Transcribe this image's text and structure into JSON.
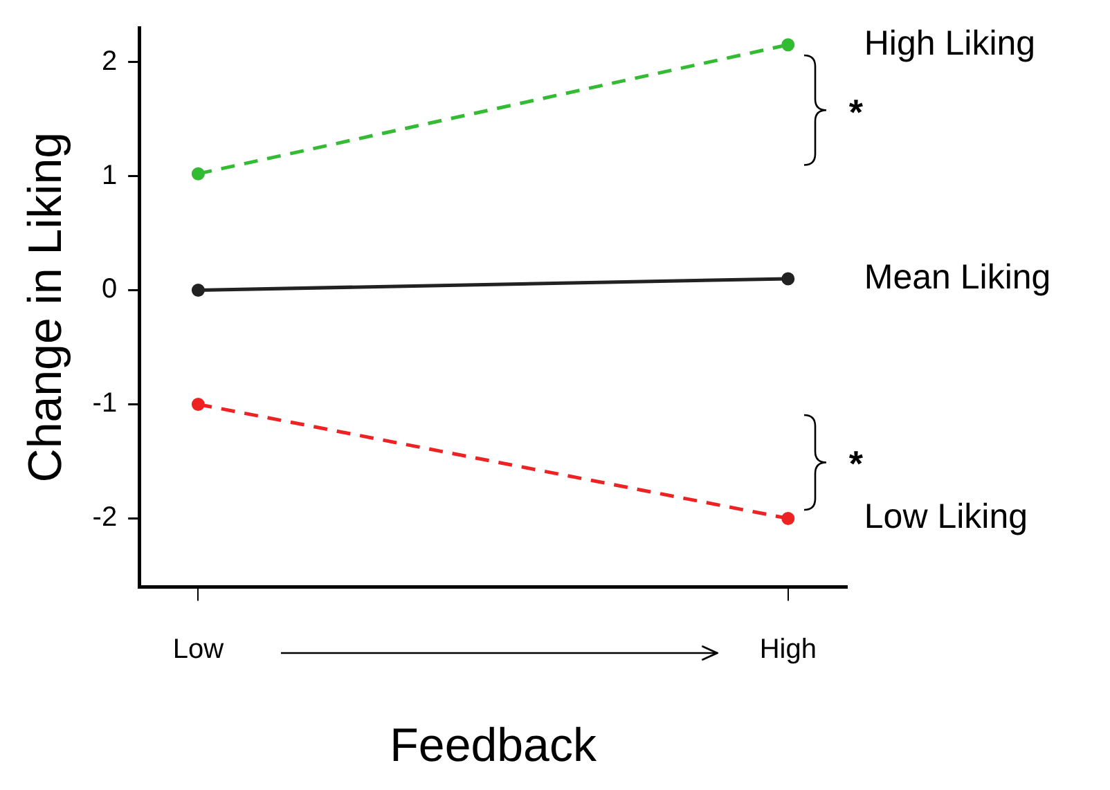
{
  "chart_data": {
    "type": "line",
    "xlabel": "Feedback",
    "ylabel": "Change in Liking",
    "categories": [
      "Low",
      "High"
    ],
    "series": [
      {
        "name": "High Liking",
        "color": "#33bb33",
        "line_style": "dashed",
        "values": [
          1.02,
          2.15
        ]
      },
      {
        "name": "Mean Liking",
        "color": "#222222",
        "line_style": "solid",
        "values": [
          0.0,
          0.1
        ]
      },
      {
        "name": "Low Liking",
        "color": "#ee2222",
        "line_style": "dashed",
        "values": [
          -1.0,
          -2.0
        ]
      }
    ],
    "annotations": [
      "*",
      "*"
    ],
    "ylim": [
      -2.6,
      2.3
    ],
    "yticks": [
      -2,
      -1,
      0,
      1,
      2
    ],
    "marker": "circle",
    "grid": false,
    "legend": false
  }
}
